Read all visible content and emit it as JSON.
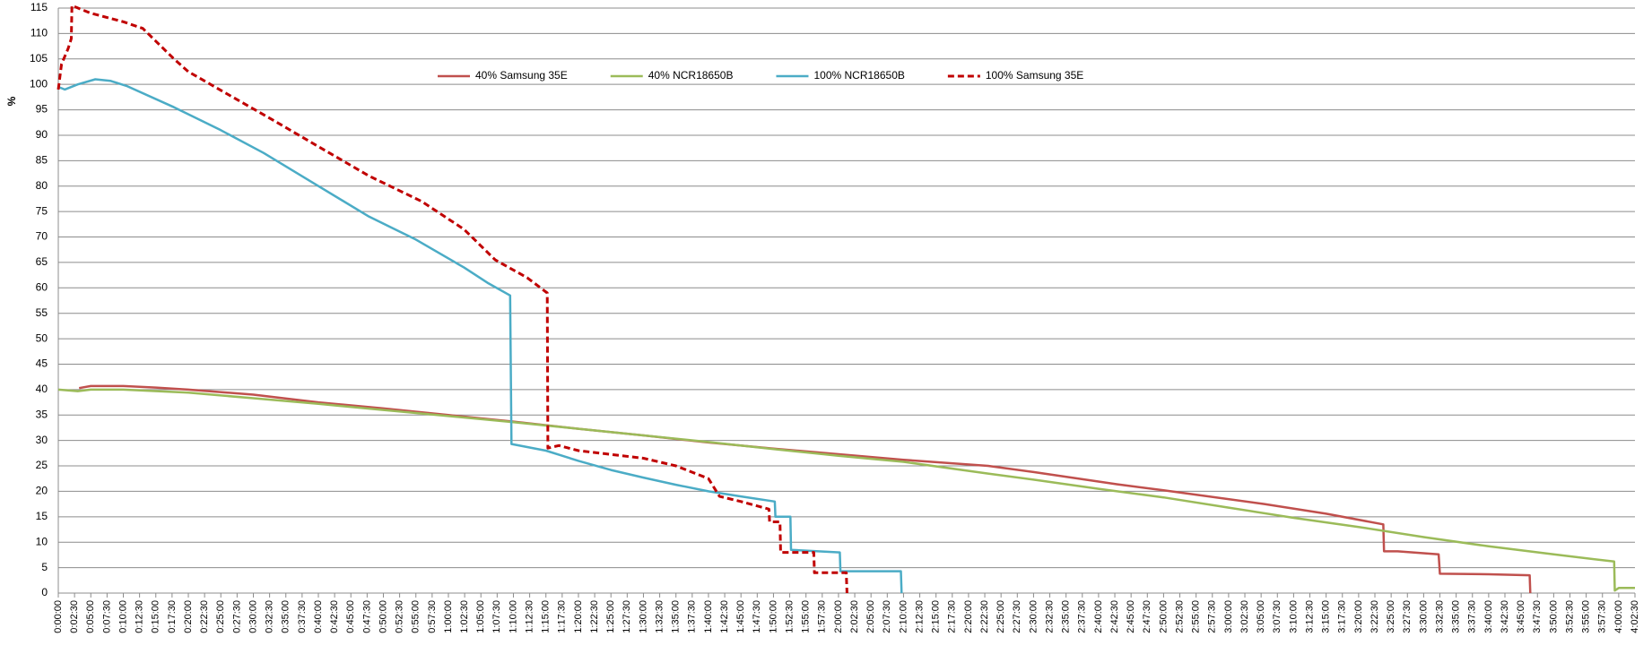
{
  "chart_data": {
    "type": "line",
    "y_label": "%",
    "ylim": [
      0,
      115
    ],
    "yticks": [
      0,
      5,
      10,
      15,
      20,
      25,
      30,
      35,
      40,
      45,
      50,
      55,
      60,
      65,
      70,
      75,
      80,
      85,
      90,
      95,
      100,
      105,
      110,
      115
    ],
    "xlim": [
      0,
      242.5
    ],
    "xticks": [
      {
        "value": 0,
        "label": "0:00:00"
      },
      {
        "value": 2.5,
        "label": "0:02:30"
      },
      {
        "value": 5,
        "label": "0:05:00"
      },
      {
        "value": 7.5,
        "label": "0:07:30"
      },
      {
        "value": 10,
        "label": "0:10:00"
      },
      {
        "value": 12.5,
        "label": "0:12:30"
      },
      {
        "value": 15,
        "label": "0:15:00"
      },
      {
        "value": 17.5,
        "label": "0:17:30"
      },
      {
        "value": 20,
        "label": "0:20:00"
      },
      {
        "value": 22.5,
        "label": "0:22:30"
      },
      {
        "value": 25,
        "label": "0:25:00"
      },
      {
        "value": 27.5,
        "label": "0:27:30"
      },
      {
        "value": 30,
        "label": "0:30:00"
      },
      {
        "value": 32.5,
        "label": "0:32:30"
      },
      {
        "value": 35,
        "label": "0:35:00"
      },
      {
        "value": 37.5,
        "label": "0:37:30"
      },
      {
        "value": 40,
        "label": "0:40:00"
      },
      {
        "value": 42.5,
        "label": "0:42:30"
      },
      {
        "value": 45,
        "label": "0:45:00"
      },
      {
        "value": 47.5,
        "label": "0:47:30"
      },
      {
        "value": 50,
        "label": "0:50:00"
      },
      {
        "value": 52.5,
        "label": "0:52:30"
      },
      {
        "value": 55,
        "label": "0:55:00"
      },
      {
        "value": 57.5,
        "label": "0:57:30"
      },
      {
        "value": 60,
        "label": "1:00:00"
      },
      {
        "value": 62.5,
        "label": "1:02:30"
      },
      {
        "value": 65,
        "label": "1:05:00"
      },
      {
        "value": 67.5,
        "label": "1:07:30"
      },
      {
        "value": 70,
        "label": "1:10:00"
      },
      {
        "value": 72.5,
        "label": "1:12:30"
      },
      {
        "value": 75,
        "label": "1:15:00"
      },
      {
        "value": 77.5,
        "label": "1:17:30"
      },
      {
        "value": 80,
        "label": "1:20:00"
      },
      {
        "value": 82.5,
        "label": "1:22:30"
      },
      {
        "value": 85,
        "label": "1:25:00"
      },
      {
        "value": 87.5,
        "label": "1:27:30"
      },
      {
        "value": 90,
        "label": "1:30:00"
      },
      {
        "value": 92.5,
        "label": "1:32:30"
      },
      {
        "value": 95,
        "label": "1:35:00"
      },
      {
        "value": 97.5,
        "label": "1:37:30"
      },
      {
        "value": 100,
        "label": "1:40:00"
      },
      {
        "value": 102.5,
        "label": "1:42:30"
      },
      {
        "value": 105,
        "label": "1:45:00"
      },
      {
        "value": 107.5,
        "label": "1:47:30"
      },
      {
        "value": 110,
        "label": "1:50:00"
      },
      {
        "value": 112.5,
        "label": "1:52:30"
      },
      {
        "value": 115,
        "label": "1:55:00"
      },
      {
        "value": 117.5,
        "label": "1:57:30"
      },
      {
        "value": 120,
        "label": "2:00:00"
      },
      {
        "value": 122.5,
        "label": "2:02:30"
      },
      {
        "value": 125,
        "label": "2:05:00"
      },
      {
        "value": 127.5,
        "label": "2:07:30"
      },
      {
        "value": 130,
        "label": "2:10:00"
      },
      {
        "value": 132.5,
        "label": "2:12:30"
      },
      {
        "value": 135,
        "label": "2:15:00"
      },
      {
        "value": 137.5,
        "label": "2:17:30"
      },
      {
        "value": 140,
        "label": "2:20:00"
      },
      {
        "value": 142.5,
        "label": "2:22:30"
      },
      {
        "value": 145,
        "label": "2:25:00"
      },
      {
        "value": 147.5,
        "label": "2:27:30"
      },
      {
        "value": 150,
        "label": "2:30:00"
      },
      {
        "value": 152.5,
        "label": "2:32:30"
      },
      {
        "value": 155,
        "label": "2:35:00"
      },
      {
        "value": 157.5,
        "label": "2:37:30"
      },
      {
        "value": 160,
        "label": "2:40:00"
      },
      {
        "value": 162.5,
        "label": "2:42:30"
      },
      {
        "value": 165,
        "label": "2:45:00"
      },
      {
        "value": 167.5,
        "label": "2:47:30"
      },
      {
        "value": 170,
        "label": "2:50:00"
      },
      {
        "value": 172.5,
        "label": "2:52:30"
      },
      {
        "value": 175,
        "label": "2:55:00"
      },
      {
        "value": 177.5,
        "label": "2:57:30"
      },
      {
        "value": 180,
        "label": "3:00:00"
      },
      {
        "value": 182.5,
        "label": "3:02:30"
      },
      {
        "value": 185,
        "label": "3:05:00"
      },
      {
        "value": 187.5,
        "label": "3:07:30"
      },
      {
        "value": 190,
        "label": "3:10:00"
      },
      {
        "value": 192.5,
        "label": "3:12:30"
      },
      {
        "value": 195,
        "label": "3:15:00"
      },
      {
        "value": 197.5,
        "label": "3:17:30"
      },
      {
        "value": 200,
        "label": "3:20:00"
      },
      {
        "value": 202.5,
        "label": "3:22:30"
      },
      {
        "value": 205,
        "label": "3:25:00"
      },
      {
        "value": 207.5,
        "label": "3:27:30"
      },
      {
        "value": 210,
        "label": "3:30:00"
      },
      {
        "value": 212.5,
        "label": "3:32:30"
      },
      {
        "value": 215,
        "label": "3:35:00"
      },
      {
        "value": 217.5,
        "label": "3:37:30"
      },
      {
        "value": 220,
        "label": "3:40:00"
      },
      {
        "value": 222.5,
        "label": "3:42:30"
      },
      {
        "value": 225,
        "label": "3:45:00"
      },
      {
        "value": 227.5,
        "label": "3:47:30"
      },
      {
        "value": 230,
        "label": "3:50:00"
      },
      {
        "value": 232.5,
        "label": "3:52:30"
      },
      {
        "value": 235,
        "label": "3:55:00"
      },
      {
        "value": 237.5,
        "label": "3:57:30"
      },
      {
        "value": 240,
        "label": "4:00:00"
      },
      {
        "value": 242.5,
        "label": "4:02:30"
      }
    ],
    "grid": true,
    "series": [
      {
        "name": "40% Samsung 35E",
        "color": "#c0504d",
        "line_style": "solid",
        "x": [
          3.2,
          5,
          10,
          15,
          20,
          30,
          40,
          50,
          60,
          70,
          80,
          90,
          100,
          110,
          120,
          130,
          143,
          150,
          162.8,
          170,
          185.5,
          195,
          203.8,
          203.9,
          206,
          212.3,
          212.5,
          220,
          226.3,
          226.4
        ],
        "values": [
          40.3,
          40.7,
          40.7,
          40.4,
          40,
          39,
          37.5,
          36.3,
          35,
          33.7,
          32.3,
          31,
          29.6,
          28.4,
          27.3,
          26.2,
          25,
          23.8,
          21.4,
          20.2,
          17.5,
          15.6,
          13.5,
          8.2,
          8.2,
          7.6,
          3.8,
          3.7,
          3.5,
          0
        ]
      },
      {
        "name": "40% NCR18650B",
        "color": "#9bbb59",
        "line_style": "solid",
        "x": [
          0,
          3,
          5,
          10,
          20,
          30,
          40,
          50,
          60,
          70,
          80,
          90,
          100,
          110,
          120,
          130,
          143,
          150,
          160,
          170,
          180,
          190,
          200,
          210,
          220,
          230,
          239.3,
          239.4,
          240,
          242.5
        ],
        "values": [
          40,
          39.7,
          40,
          40,
          39.4,
          38.3,
          37.2,
          36,
          34.8,
          33.6,
          32.3,
          31,
          29.7,
          28.3,
          27,
          25.8,
          23.5,
          22.3,
          20.5,
          18.8,
          16.8,
          14.8,
          13,
          11,
          9.2,
          7.6,
          6.2,
          0.5,
          1,
          1
        ]
      },
      {
        "name": "100% NCR18650B",
        "color": "#4bacc6",
        "line_style": "solid",
        "x": [
          0,
          1,
          3,
          5.7,
          8,
          10.5,
          17.8,
          25,
          31.6,
          40,
          47.8,
          55,
          62.4,
          66,
          69.5,
          69.7,
          75,
          80,
          85,
          90,
          95,
          100,
          105,
          110.2,
          110.3,
          112.6,
          112.7,
          120.2,
          120.3,
          129.6,
          129.7
        ],
        "values": [
          99.5,
          99,
          100,
          101,
          100.7,
          99.7,
          95.5,
          91,
          86.5,
          80,
          74,
          69.5,
          64,
          61,
          58.5,
          29.3,
          28,
          26,
          24.2,
          22.7,
          21.3,
          20,
          19,
          18,
          15,
          15,
          8.5,
          8,
          4.3,
          4.3,
          0
        ]
      },
      {
        "name": "100% Samsung 35E",
        "color": "#c00000",
        "line_style": "dashed",
        "x": [
          0,
          0.5,
          1.5,
          2,
          2.1,
          5,
          10,
          13,
          17.8,
          20,
          27.5,
          33,
          39.7,
          47.8,
          55.9,
          62.4,
          67.2,
          72.1,
          75.2,
          75.3,
          77,
          80,
          90,
          95,
          100,
          101.7,
          105,
          109.3,
          109.4,
          111,
          111.1,
          116.2,
          116.3,
          121.2,
          121.3
        ],
        "values": [
          99,
          104,
          107,
          109,
          115.5,
          114,
          112.3,
          111,
          105,
          102.5,
          97,
          93,
          88,
          82,
          77,
          71.5,
          65.5,
          62,
          59,
          28.5,
          29,
          28,
          26.5,
          25,
          22.5,
          19,
          18,
          16.5,
          14,
          14,
          8,
          8,
          4,
          4,
          0
        ]
      }
    ],
    "legend_position": "top"
  }
}
